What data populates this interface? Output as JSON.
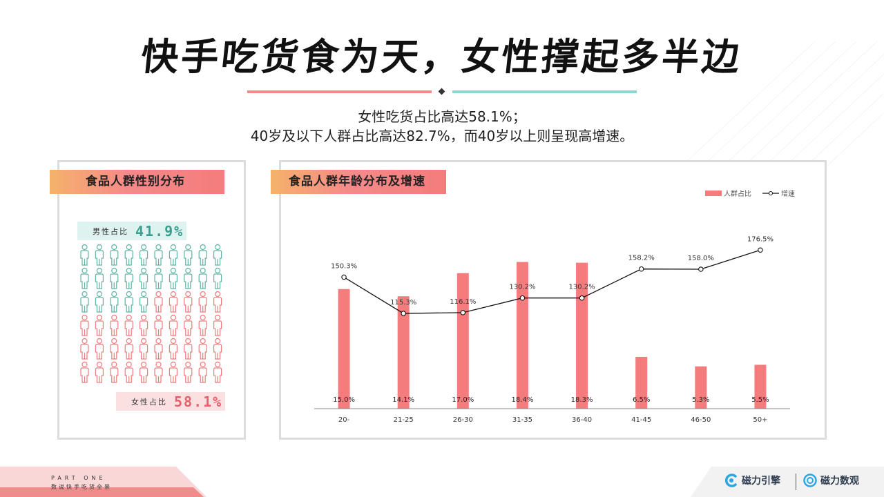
{
  "page": {
    "title": "快手吃货食为天，女性撑起多半边",
    "subtitle_line1": "女性吃货占比高达58.1%；",
    "subtitle_line2": "40岁及以下人群占比高达82.7%，而40岁以上则呈现高增速。"
  },
  "left_panel": {
    "tag": "食品人群性别分布",
    "male_label": "男性占比",
    "male_value": "41.9%",
    "female_label": "女性占比",
    "female_value": "58.1%",
    "male_fraction": 0.419,
    "icon_colors": {
      "male": "#5db3a4",
      "female": "#ef7a7c"
    }
  },
  "right_panel": {
    "tag": "食品人群年龄分布及增速"
  },
  "chart_data": {
    "type": "bar",
    "categories": [
      "20-",
      "21-25",
      "26-30",
      "31-35",
      "36-40",
      "41-45",
      "46-50",
      "50+"
    ],
    "series": [
      {
        "name": "人群占比",
        "type": "bar",
        "values": [
          15.0,
          14.1,
          17.0,
          18.4,
          18.3,
          6.5,
          5.3,
          5.5
        ],
        "labels": [
          "15.0%",
          "14.1%",
          "17.0%",
          "18.4%",
          "18.3%",
          "6.5%",
          "5.3%",
          "5.5%"
        ],
        "color": "#f47c7c"
      },
      {
        "name": "增速",
        "type": "line",
        "values": [
          150.3,
          115.3,
          116.1,
          130.2,
          130.2,
          158.2,
          158.0,
          176.5
        ],
        "labels": [
          "150.3%",
          "115.3%",
          "116.1%",
          "130.2%",
          "130.2%",
          "158.2%",
          "158.0%",
          "176.5%"
        ],
        "color": "#111111"
      }
    ],
    "legend_placement": "top-right",
    "grid": false
  },
  "footer": {
    "part": "PART ONE",
    "section": "数说快手吃货全景",
    "logo1": "磁力引擎",
    "logo2": "磁力数观"
  }
}
